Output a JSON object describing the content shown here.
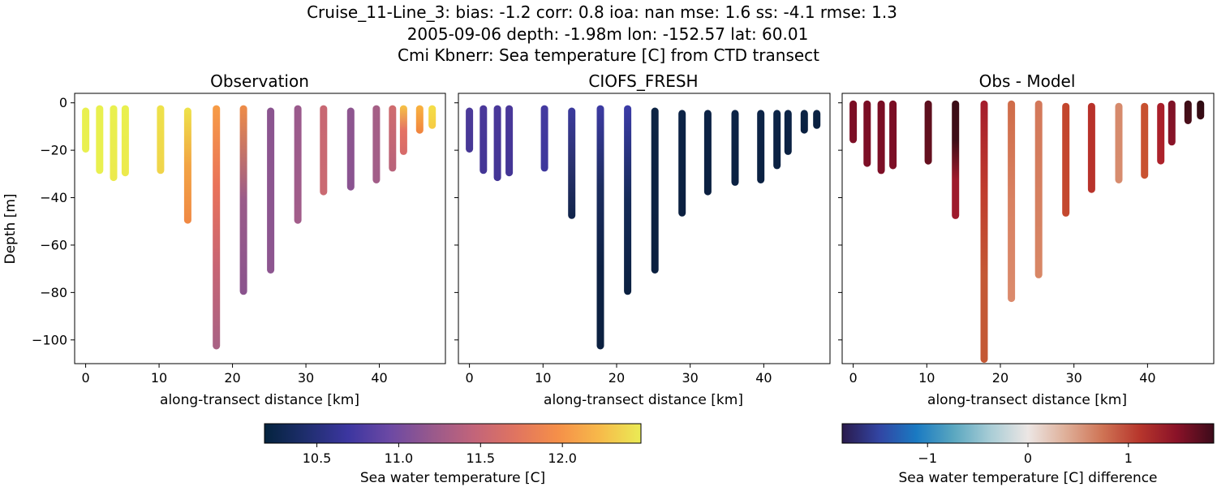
{
  "figure": {
    "title_lines": [
      "Cruise_11-Line_3: bias: -1.2  corr: 0.8  ioa: nan  mse: 1.6  ss: -4.1  rmse: 1.3",
      "2005-09-06 depth: -1.98m lon: -152.57 lat: 60.01",
      "Cmi Kbnerr: Sea temperature [C] from CTD transect"
    ]
  },
  "chart_data": [
    {
      "type": "scatter",
      "title": "Observation",
      "xlabel": "along-transect distance [km]",
      "ylabel": "Depth [m]",
      "xlim": [
        -1.5,
        49
      ],
      "ylim": [
        -110,
        4
      ],
      "xticks": [
        0,
        10,
        20,
        30,
        40
      ],
      "yticks": [
        0,
        -20,
        -40,
        -60,
        -80,
        -100
      ],
      "colormap": "thermal",
      "profiles": [
        {
          "x": 0.0,
          "top": -2,
          "bottom": -21,
          "colors": [
            "#e9f04f",
            "#e9f04f"
          ]
        },
        {
          "x": 1.9,
          "top": -1,
          "bottom": -30,
          "colors": [
            "#e9f04f",
            "#e9f04f"
          ]
        },
        {
          "x": 3.8,
          "top": -1,
          "bottom": -33,
          "colors": [
            "#e9f04f",
            "#ecea4d"
          ]
        },
        {
          "x": 5.4,
          "top": -1,
          "bottom": -31,
          "colors": [
            "#e9f04f",
            "#ecea4d"
          ]
        },
        {
          "x": 10.2,
          "top": -1,
          "bottom": -30,
          "colors": [
            "#eee24a",
            "#f0d44b"
          ]
        },
        {
          "x": 13.9,
          "top": -2,
          "bottom": -51,
          "colors": [
            "#eee34a",
            "#f2a444",
            "#f08844"
          ]
        },
        {
          "x": 17.8,
          "top": -1,
          "bottom": -104,
          "colors": [
            "#f79c45",
            "#e9725a",
            "#c76474",
            "#a86285"
          ]
        },
        {
          "x": 21.5,
          "top": -1,
          "bottom": -81,
          "colors": [
            "#ee8c47",
            "#9a5b8a",
            "#8a538d"
          ]
        },
        {
          "x": 25.2,
          "top": -2,
          "bottom": -72,
          "colors": [
            "#8b5590",
            "#8d5690"
          ]
        },
        {
          "x": 28.9,
          "top": -1,
          "bottom": -51,
          "colors": [
            "#9a5a8c",
            "#a25d8a"
          ]
        },
        {
          "x": 32.4,
          "top": -1,
          "bottom": -39,
          "colors": [
            "#c86873",
            "#ca6a72"
          ]
        },
        {
          "x": 36.1,
          "top": -2,
          "bottom": -37,
          "colors": [
            "#8e5690",
            "#8a5391"
          ]
        },
        {
          "x": 39.6,
          "top": -1,
          "bottom": -34,
          "colors": [
            "#a55f86",
            "#a25d88"
          ]
        },
        {
          "x": 41.8,
          "top": -1,
          "bottom": -29,
          "colors": [
            "#d06c6e",
            "#b8637b"
          ]
        },
        {
          "x": 43.3,
          "top": -1,
          "bottom": -22,
          "colors": [
            "#f6c344",
            "#e57364",
            "#d66a6a"
          ]
        },
        {
          "x": 45.5,
          "top": -1,
          "bottom": -13,
          "colors": [
            "#f9b33f",
            "#f0833f"
          ]
        },
        {
          "x": 47.2,
          "top": -1,
          "bottom": -11,
          "colors": [
            "#f4de48",
            "#f6cb44"
          ]
        }
      ]
    },
    {
      "type": "scatter",
      "title": "CIOFS_FRESH",
      "xlabel": "along-transect distance [km]",
      "xlim": [
        -1.5,
        49
      ],
      "ylim": [
        -110,
        4
      ],
      "xticks": [
        0,
        10,
        20,
        30,
        40
      ],
      "colormap": "thermal",
      "profiles": [
        {
          "x": 0.0,
          "top": -2,
          "bottom": -21,
          "colors": [
            "#4c3a9a",
            "#463795"
          ]
        },
        {
          "x": 1.9,
          "top": -1,
          "bottom": -30,
          "colors": [
            "#4a389a",
            "#433595"
          ]
        },
        {
          "x": 3.8,
          "top": -1,
          "bottom": -33,
          "colors": [
            "#4a389a",
            "#433595"
          ]
        },
        {
          "x": 5.4,
          "top": -1,
          "bottom": -31,
          "colors": [
            "#4a389a",
            "#433595"
          ]
        },
        {
          "x": 10.2,
          "top": -1,
          "bottom": -29,
          "colors": [
            "#443aa0",
            "#3e379c"
          ]
        },
        {
          "x": 13.9,
          "top": -2,
          "bottom": -49,
          "colors": [
            "#3c3b9e",
            "#2b3270",
            "#10244a"
          ]
        },
        {
          "x": 17.8,
          "top": -1,
          "bottom": -104,
          "colors": [
            "#3d3ba3",
            "#1c2d60",
            "#0c2144",
            "#0b2040"
          ]
        },
        {
          "x": 21.5,
          "top": -1,
          "bottom": -81,
          "colors": [
            "#3c3ca8",
            "#152b58",
            "#0b2040"
          ]
        },
        {
          "x": 25.2,
          "top": -2,
          "bottom": -72,
          "colors": [
            "#0d2444",
            "#0b2040"
          ]
        },
        {
          "x": 28.9,
          "top": -3,
          "bottom": -48,
          "colors": [
            "#0c2346",
            "#0b2040"
          ]
        },
        {
          "x": 32.4,
          "top": -3,
          "bottom": -39,
          "colors": [
            "#0c2346",
            "#0b2040"
          ]
        },
        {
          "x": 36.1,
          "top": -3,
          "bottom": -35,
          "colors": [
            "#0c2447",
            "#0b2142"
          ]
        },
        {
          "x": 39.6,
          "top": -3,
          "bottom": -34,
          "colors": [
            "#0c2447",
            "#0b2142"
          ]
        },
        {
          "x": 41.8,
          "top": -3,
          "bottom": -28,
          "colors": [
            "#0c2447",
            "#0b2142"
          ]
        },
        {
          "x": 43.3,
          "top": -3,
          "bottom": -22,
          "colors": [
            "#0c2447",
            "#0b2142"
          ]
        },
        {
          "x": 45.5,
          "top": -3,
          "bottom": -13,
          "colors": [
            "#0b2344",
            "#0a2040"
          ]
        },
        {
          "x": 47.2,
          "top": -3,
          "bottom": -11,
          "colors": [
            "#0b2344",
            "#0a2040"
          ]
        }
      ]
    },
    {
      "type": "scatter",
      "title": "Obs - Model",
      "xlabel": "along-transect distance [km]",
      "xlim": [
        -1.5,
        49
      ],
      "ylim": [
        -110,
        4
      ],
      "xticks": [
        0,
        10,
        20,
        30,
        40
      ],
      "colormap": "balance",
      "profiles": [
        {
          "x": 0.0,
          "top": 1,
          "bottom": -17,
          "colors": [
            "#7a0d24",
            "#7d0f26"
          ]
        },
        {
          "x": 1.9,
          "top": 1,
          "bottom": -27,
          "colors": [
            "#7a0d24",
            "#7d0f26"
          ]
        },
        {
          "x": 3.8,
          "top": 1,
          "bottom": -30,
          "colors": [
            "#7a0d24",
            "#7d0f26"
          ]
        },
        {
          "x": 5.4,
          "top": 1,
          "bottom": -28,
          "colors": [
            "#7a0d24",
            "#7d0f26"
          ]
        },
        {
          "x": 10.2,
          "top": 1,
          "bottom": -26,
          "colors": [
            "#5c0f1e",
            "#66101f"
          ]
        },
        {
          "x": 13.9,
          "top": 1,
          "bottom": -49,
          "colors": [
            "#3c0d16",
            "#3e0d17",
            "#9e1a2c",
            "#9e1a2c"
          ]
        },
        {
          "x": 17.8,
          "top": 1,
          "bottom": -110,
          "colors": [
            "#a41c2c",
            "#bf3b2d",
            "#c45834",
            "#c45834"
          ]
        },
        {
          "x": 21.5,
          "top": 1,
          "bottom": -84,
          "colors": [
            "#cf6c49",
            "#d98262",
            "#db8b6d"
          ]
        },
        {
          "x": 25.2,
          "top": 1,
          "bottom": -74,
          "colors": [
            "#d3785a",
            "#d88766"
          ]
        },
        {
          "x": 28.9,
          "top": 0,
          "bottom": -48,
          "colors": [
            "#c3462d",
            "#c4482f"
          ]
        },
        {
          "x": 32.4,
          "top": 0,
          "bottom": -38,
          "colors": [
            "#b8312a",
            "#b8332b"
          ]
        },
        {
          "x": 36.1,
          "top": 0,
          "bottom": -34,
          "colors": [
            "#d68a6c",
            "#d78c6e"
          ]
        },
        {
          "x": 39.6,
          "top": 0,
          "bottom": -32,
          "colors": [
            "#c8502f",
            "#c95331"
          ]
        },
        {
          "x": 41.8,
          "top": 0,
          "bottom": -26,
          "colors": [
            "#a91e2a",
            "#ad232b"
          ]
        },
        {
          "x": 43.3,
          "top": 1,
          "bottom": -18,
          "colors": [
            "#7e1226",
            "#8a1428"
          ]
        },
        {
          "x": 45.5,
          "top": 1,
          "bottom": -9,
          "colors": [
            "#3d0d16",
            "#4b0e1a"
          ]
        },
        {
          "x": 47.2,
          "top": 1,
          "bottom": -7,
          "colors": [
            "#2e0b12",
            "#3a0c15"
          ]
        }
      ]
    }
  ],
  "colorbars": [
    {
      "label": "Sea water temperature [C]",
      "range": [
        10.18,
        12.48
      ],
      "ticks": [
        "10.5",
        "11.0",
        "11.5",
        "12.0"
      ],
      "tick_values": [
        10.5,
        11.0,
        11.5,
        12.0
      ],
      "colors": [
        "#04233e",
        "#1f2e6e",
        "#3c36a0",
        "#6c49a4",
        "#98598c",
        "#c2647a",
        "#e07460",
        "#f58f49",
        "#f7b94a",
        "#eaeb55"
      ]
    },
    {
      "label": "Sea water temperature [C] difference",
      "range": [
        -1.85,
        1.85
      ],
      "ticks": [
        "−1",
        "0",
        "1"
      ],
      "tick_values": [
        -1,
        0,
        1
      ],
      "colors": [
        "#2a1a4c",
        "#3245a3",
        "#1a7ac2",
        "#5aa7c0",
        "#a9cdd6",
        "#ece6e4",
        "#dfb09a",
        "#cf7455",
        "#b7362c",
        "#8a1228",
        "#3c0b1a"
      ]
    }
  ]
}
